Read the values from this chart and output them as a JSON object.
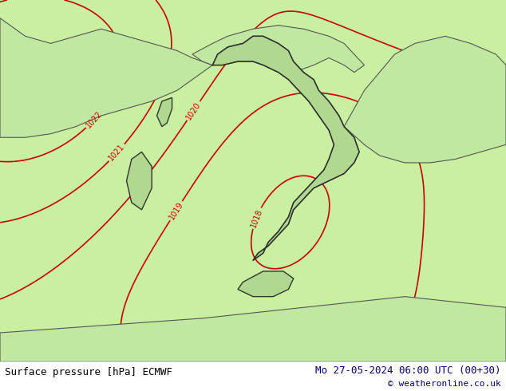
{
  "title_left": "Surface pressure [hPa] ECMWF",
  "title_right": "Mo 27-05-2024 06:00 UTC (00+30)",
  "copyright": "© weatheronline.co.uk",
  "background_color": "#c8f0a0",
  "land_color": "#c8f0a0",
  "sea_color": "#c8f0a0",
  "border_color": "#333333",
  "italy_fill": "#a8e080",
  "contour_color": "#cc0000",
  "contour_label_color": "#cc0000",
  "border_line_color": "#555555",
  "footer_bg": "#ffffff",
  "footer_text_color": "#000080",
  "text_color_left": "#000000",
  "text_color_right": "#000080",
  "fig_width": 6.34,
  "fig_height": 4.9,
  "dpi": 100
}
